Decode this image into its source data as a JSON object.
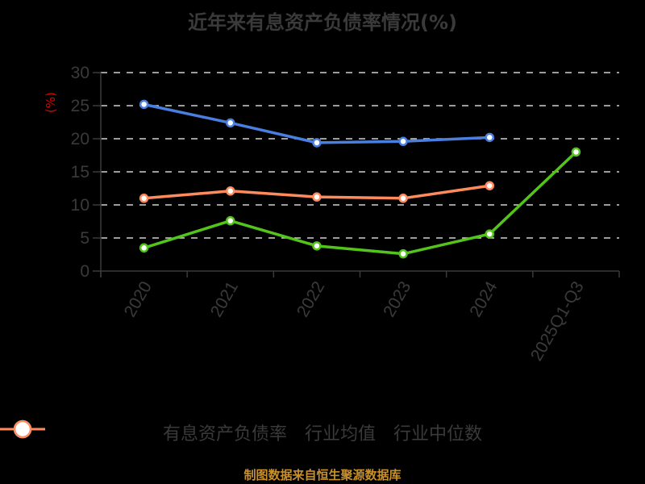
{
  "title": "近年来有息资产负债率情况(%)",
  "footer": "制图数据来自恒生聚源数据库",
  "colors": {
    "background": "#000000",
    "series_green": "#52c41a",
    "series_blue": "#4a7fe0",
    "series_orange": "#ff8a5b",
    "axis": "#3a3a3a",
    "grid": "#d0d0d0",
    "unit_label": "#e00000",
    "footer": "#c8902a"
  },
  "chart_data": {
    "type": "line",
    "title": "近年来有息资产负债率情况(%)",
    "xlabel": "",
    "ylabel": "(%)",
    "ylim": [
      0,
      30
    ],
    "yticks": [
      0,
      5,
      10,
      15,
      20,
      25,
      30
    ],
    "grid": true,
    "legend_position": "bottom",
    "categories": [
      "2020",
      "2021",
      "2022",
      "2023",
      "2024",
      "2025Q1-Q3"
    ],
    "series": [
      {
        "name": "有息资产负债率",
        "color": "#52c41a",
        "values": [
          3.5,
          7.6,
          3.8,
          2.6,
          5.6,
          18.0
        ]
      },
      {
        "name": "行业均值",
        "color": "#4a7fe0",
        "values": [
          25.2,
          22.4,
          19.4,
          19.6,
          20.2,
          null
        ]
      },
      {
        "name": "行业中位数",
        "color": "#ff8a5b",
        "values": [
          11.0,
          12.1,
          11.2,
          11.0,
          12.9,
          null
        ]
      }
    ]
  },
  "legend": [
    {
      "label": "有息资产负债率",
      "color": "#52c41a"
    },
    {
      "label": "行业均值",
      "color": "#4a7fe0"
    },
    {
      "label": "行业中位数",
      "color": "#ff8a5b"
    }
  ]
}
